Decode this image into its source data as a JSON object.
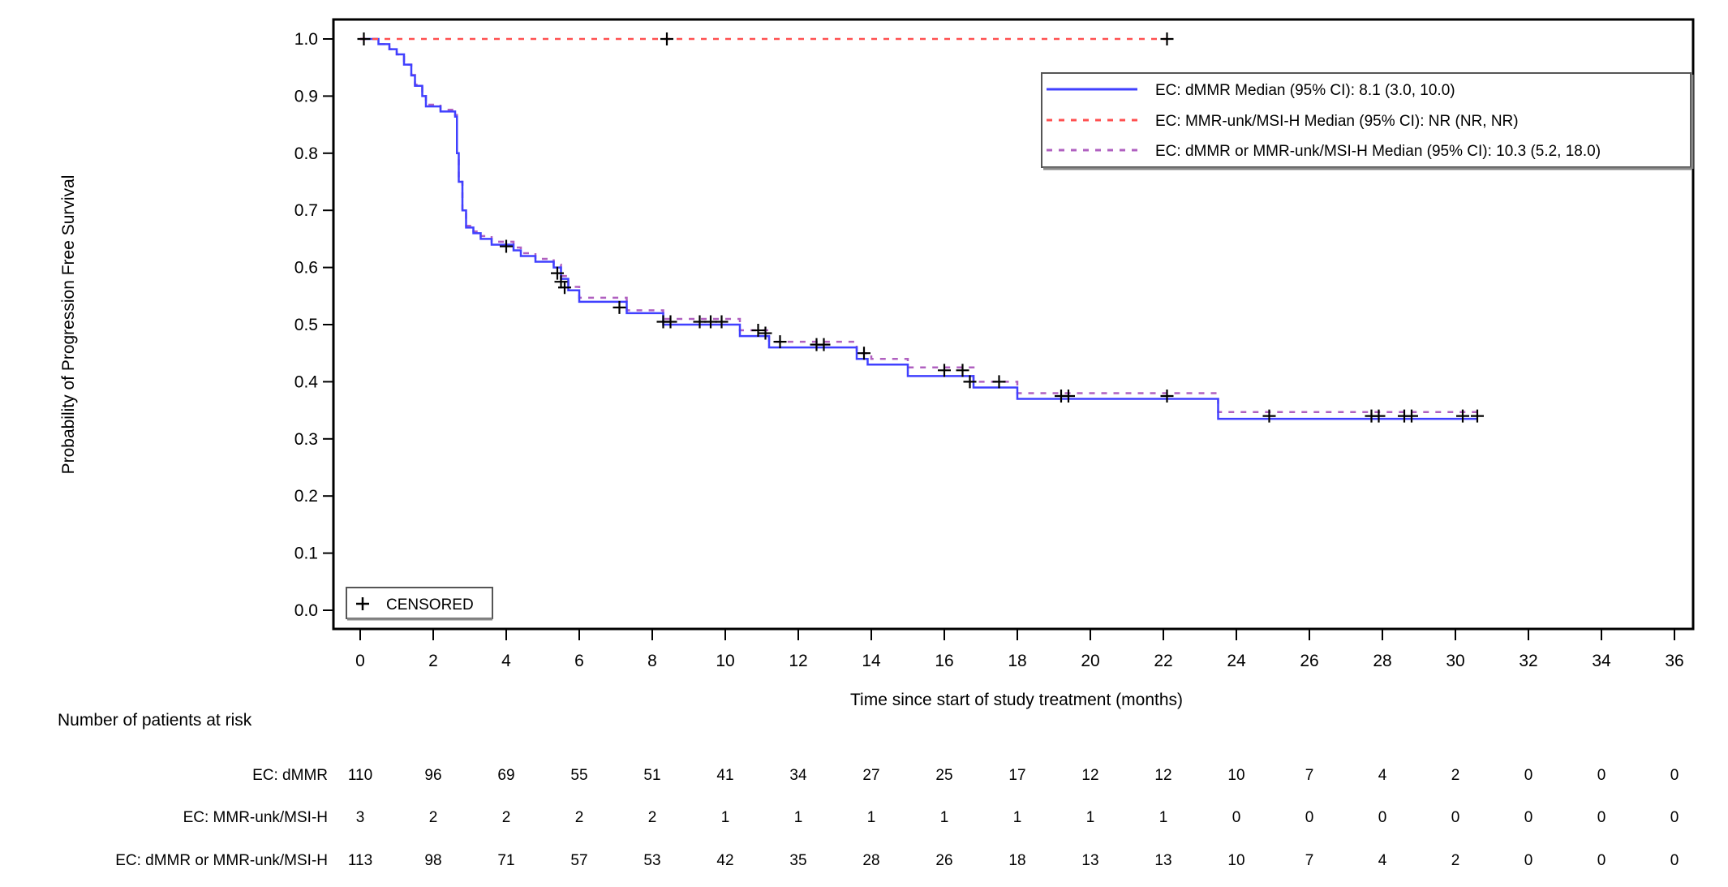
{
  "chart_data": {
    "type": "line",
    "subtype": "kaplan-meier step",
    "title": "",
    "xlabel": "Time since start of study treatment (months)",
    "ylabel": "Probability of Progression Free Survival",
    "xlim": [
      0,
      36
    ],
    "ylim": [
      0,
      1
    ],
    "xticks": [
      "0",
      "2",
      "4",
      "6",
      "8",
      "10",
      "12",
      "14",
      "16",
      "18",
      "20",
      "22",
      "24",
      "26",
      "28",
      "30",
      "32",
      "34",
      "36"
    ],
    "yticks": [
      "0.0",
      "0.1",
      "0.2",
      "0.3",
      "0.4",
      "0.5",
      "0.6",
      "0.7",
      "0.8",
      "0.9",
      "1.0"
    ],
    "grid": false,
    "legend_position": "top-right",
    "censor_legend": "CENSORED",
    "series": [
      {
        "name": "EC: dMMR Median (95% CI): 8.1 (3.0, 10.0)",
        "color": "#4040ff",
        "style": "solid",
        "t": [
          0,
          0.5,
          0.8,
          1.0,
          1.2,
          1.4,
          1.5,
          1.7,
          1.8,
          2.2,
          2.6,
          2.65,
          2.7,
          2.8,
          2.9,
          3.1,
          3.3,
          3.6,
          4.2,
          4.4,
          4.8,
          5.3,
          5.5,
          5.7,
          6.0,
          7.3,
          8.3,
          10.4,
          11.2,
          13.6,
          13.9,
          15.0,
          16.8,
          18.0,
          23.5,
          30.6
        ],
        "s": [
          1.0,
          0.991,
          0.982,
          0.973,
          0.955,
          0.936,
          0.918,
          0.9,
          0.882,
          0.873,
          0.864,
          0.8,
          0.75,
          0.7,
          0.67,
          0.66,
          0.65,
          0.64,
          0.63,
          0.62,
          0.61,
          0.6,
          0.58,
          0.56,
          0.54,
          0.52,
          0.5,
          0.48,
          0.46,
          0.44,
          0.43,
          0.41,
          0.39,
          0.37,
          0.335,
          0.335
        ],
        "censored_t": [
          0.1,
          4.0,
          5.4,
          5.5,
          5.6,
          7.1,
          8.3,
          8.5,
          9.3,
          9.6,
          9.9,
          10.9,
          11.1,
          11.5,
          12.5,
          12.7,
          13.8,
          16.0,
          16.5,
          16.7,
          17.5,
          19.2,
          19.4,
          22.1,
          24.9,
          27.7,
          27.9,
          28.6,
          28.8,
          30.2,
          30.6
        ],
        "censored_s": [
          1.0,
          0.637,
          0.59,
          0.575,
          0.565,
          0.53,
          0.505,
          0.505,
          0.505,
          0.505,
          0.505,
          0.49,
          0.485,
          0.47,
          0.465,
          0.465,
          0.45,
          0.42,
          0.42,
          0.4,
          0.4,
          0.375,
          0.375,
          0.375,
          0.34,
          0.34,
          0.34,
          0.34,
          0.34,
          0.34,
          0.34
        ]
      },
      {
        "name": "EC: MMR-unk/MSI-H Median (95% CI): NR (NR, NR)",
        "color": "#ff5050",
        "style": "dashed",
        "t": [
          0,
          22.1
        ],
        "s": [
          1.0,
          1.0
        ],
        "censored_t": [
          8.4,
          22.1
        ],
        "censored_s": [
          1.0,
          1.0
        ]
      },
      {
        "name": "EC: dMMR or MMR-unk/MSI-H Median (95% CI): 10.3 (5.2, 18.0)",
        "color": "#b060c0",
        "style": "dashed",
        "t": [
          0,
          0.5,
          0.8,
          1.0,
          1.2,
          1.4,
          1.5,
          1.7,
          1.8,
          2.2,
          2.6,
          2.65,
          2.7,
          2.8,
          2.9,
          3.1,
          3.3,
          3.6,
          4.2,
          4.4,
          4.8,
          5.3,
          5.5,
          5.7,
          6.0,
          7.3,
          8.3,
          10.4,
          11.2,
          13.6,
          14.0,
          15.0,
          16.8,
          18.0,
          23.5,
          30.6
        ],
        "s": [
          1.0,
          0.991,
          0.982,
          0.973,
          0.955,
          0.937,
          0.92,
          0.902,
          0.885,
          0.876,
          0.867,
          0.8,
          0.75,
          0.7,
          0.673,
          0.663,
          0.655,
          0.645,
          0.635,
          0.625,
          0.615,
          0.605,
          0.585,
          0.566,
          0.547,
          0.525,
          0.51,
          0.49,
          0.47,
          0.45,
          0.44,
          0.425,
          0.4,
          0.38,
          0.347,
          0.347
        ]
      }
    ],
    "risk_table": {
      "title": "Number of patients at risk",
      "times": [
        0,
        2,
        4,
        6,
        8,
        10,
        12,
        14,
        16,
        18,
        20,
        22,
        24,
        26,
        28,
        30,
        32,
        34,
        36
      ],
      "rows": [
        {
          "label": "EC: dMMR",
          "values": [
            "110",
            "96",
            "69",
            "55",
            "51",
            "41",
            "34",
            "27",
            "25",
            "17",
            "12",
            "12",
            "10",
            "7",
            "4",
            "2",
            "0",
            "0",
            "0"
          ]
        },
        {
          "label": "EC: MMR-unk/MSI-H",
          "values": [
            "3",
            "2",
            "2",
            "2",
            "2",
            "1",
            "1",
            "1",
            "1",
            "1",
            "1",
            "1",
            "0",
            "0",
            "0",
            "0",
            "0",
            "0",
            "0"
          ]
        },
        {
          "label": "EC: dMMR or MMR-unk/MSI-H",
          "values": [
            "113",
            "98",
            "71",
            "57",
            "53",
            "42",
            "35",
            "28",
            "26",
            "18",
            "13",
            "13",
            "10",
            "7",
            "4",
            "2",
            "0",
            "0",
            "0"
          ]
        }
      ]
    }
  }
}
